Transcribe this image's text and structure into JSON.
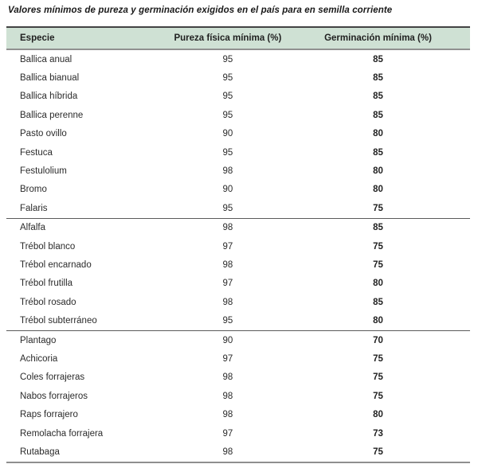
{
  "title": "Valores mínimos de pureza y germinación exigidos en el país para en semilla corriente",
  "colors": {
    "header_bg": "#cfe1d4",
    "top_border": "#434343",
    "rule_line": "#8f8f8f",
    "group_divider": "#5a5a5a",
    "text": "#2b2b2b"
  },
  "table": {
    "columns": [
      "Especie",
      "Pureza física mínima (%)",
      "Germinación mínima (%)"
    ],
    "groups": [
      {
        "rows": [
          {
            "especie": "Ballica anual",
            "pureza": "95",
            "germinacion": "85"
          },
          {
            "especie": "Ballica bianual",
            "pureza": "95",
            "germinacion": "85"
          },
          {
            "especie": "Ballica híbrida",
            "pureza": "95",
            "germinacion": "85"
          },
          {
            "especie": "Ballica perenne",
            "pureza": "95",
            "germinacion": "85"
          },
          {
            "especie": "Pasto ovillo",
            "pureza": "90",
            "germinacion": "80"
          },
          {
            "especie": "Festuca",
            "pureza": "95",
            "germinacion": "85"
          },
          {
            "especie": "Festulolium",
            "pureza": "98",
            "germinacion": "80"
          },
          {
            "especie": "Bromo",
            "pureza": "90",
            "germinacion": "80"
          },
          {
            "especie": "Falaris",
            "pureza": "95",
            "germinacion": "75"
          }
        ]
      },
      {
        "rows": [
          {
            "especie": "Alfalfa",
            "pureza": "98",
            "germinacion": "85"
          },
          {
            "especie": "Trébol blanco",
            "pureza": "97",
            "germinacion": "75"
          },
          {
            "especie": "Trébol encarnado",
            "pureza": "98",
            "germinacion": "75"
          },
          {
            "especie": "Trébol frutilla",
            "pureza": "97",
            "germinacion": "80"
          },
          {
            "especie": "Trébol rosado",
            "pureza": "98",
            "germinacion": "85"
          },
          {
            "especie": "Trébol subterráneo",
            "pureza": "95",
            "germinacion": "80"
          }
        ]
      },
      {
        "rows": [
          {
            "especie": "Plantago",
            "pureza": "90",
            "germinacion": "70"
          },
          {
            "especie": "Achicoria",
            "pureza": "97",
            "germinacion": "75"
          },
          {
            "especie": "Coles forrajeras",
            "pureza": "98",
            "germinacion": "75"
          },
          {
            "especie": "Nabos forrajeros",
            "pureza": "98",
            "germinacion": "75"
          },
          {
            "especie": "Raps forrajero",
            "pureza": "98",
            "germinacion": "80"
          },
          {
            "especie": "Remolacha forrajera",
            "pureza": "97",
            "germinacion": "73"
          },
          {
            "especie": "Rutabaga",
            "pureza": "98",
            "germinacion": "75"
          }
        ]
      }
    ]
  }
}
